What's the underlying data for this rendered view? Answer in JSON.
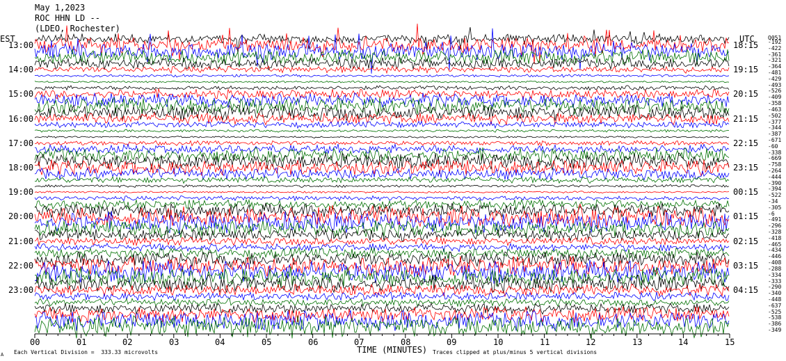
{
  "header": {
    "date": "May 1,2023",
    "station": "ROC HHN LD --",
    "network": "(LDEO, Rochester)"
  },
  "labels": {
    "left_zone": "EST",
    "right_zone": "UTC",
    "right_top_code": "Q051"
  },
  "footer": {
    "x_axis_title": "TIME (MINUTES)",
    "vertical_division": "Each Vertical Division =  333.33 microvolts",
    "clipping_note": "Traces clipped at plus/minus 5 vertical divisions",
    "corner_mark": "A"
  },
  "chart_data": {
    "type": "line",
    "title": "",
    "xlabel": "TIME (MINUTES)",
    "ylabel": "",
    "xlim": [
      0,
      15
    ],
    "x_ticks": [
      "00",
      "01",
      "02",
      "03",
      "04",
      "05",
      "06",
      "07",
      "08",
      "09",
      "10",
      "11",
      "12",
      "13",
      "14",
      "15"
    ],
    "left_hour_labels": [
      "13:00",
      "14:00",
      "15:00",
      "16:00",
      "17:00",
      "18:00",
      "19:00",
      "20:00",
      "21:00",
      "22:00",
      "23:00"
    ],
    "right_hour_labels": [
      "18:15",
      "19:15",
      "20:15",
      "21:15",
      "22:15",
      "23:15",
      "00:15",
      "01:15",
      "02:15",
      "03:15",
      "04:15"
    ],
    "trace_colors": [
      "#000000",
      "#ff0000",
      "#0000ff",
      "#007000"
    ],
    "trace_offsets": [
      "-192",
      "-422",
      "-361",
      "-321",
      "-364",
      "-481",
      "-429",
      "-493",
      "-526",
      "-409",
      "-358",
      "-463",
      "-502",
      "-377",
      "-344",
      "-387",
      "-671",
      "-60",
      "-338",
      "-669",
      "-758",
      "-264",
      "-444",
      "-390",
      "-394",
      "-522",
      "-34",
      "-305",
      "-6",
      "-491",
      "-296",
      "-328",
      "-418",
      "-465",
      "-434",
      "-446",
      "-408",
      "-288",
      "-334",
      "-333",
      "-290",
      "-340",
      "-448",
      "-637",
      "-525",
      "-538",
      "-386",
      "-349"
    ]
  }
}
